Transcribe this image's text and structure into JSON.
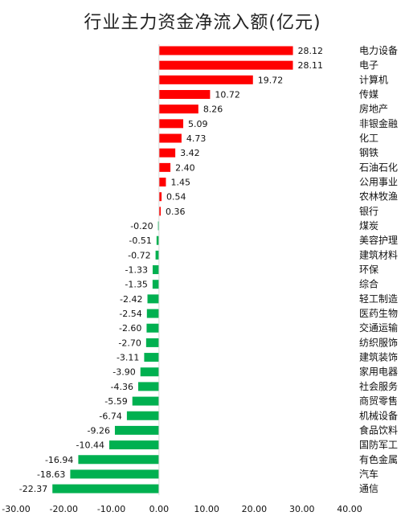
{
  "chart_data": {
    "type": "bar",
    "orientation": "horizontal",
    "title": "行业主力资金净流入额(亿元)",
    "xlim": [
      -30,
      40
    ],
    "x_ticks": [
      "-30.00",
      "-20.00",
      "-10.00",
      "0.00",
      "10.00",
      "20.00",
      "30.00",
      "40.00"
    ],
    "grid": false,
    "colors": {
      "positive": "#ff0000",
      "negative": "#00b050"
    },
    "categories": [
      "电力设备",
      "电子",
      "计算机",
      "传媒",
      "房地产",
      "非银金融",
      "化工",
      "钢铁",
      "石油石化",
      "公用事业",
      "农林牧渔",
      "银行",
      "煤炭",
      "美容护理",
      "建筑材料",
      "环保",
      "综合",
      "轻工制造",
      "医药生物",
      "交通运输",
      "纺织服饰",
      "建筑装饰",
      "家用电器",
      "社会服务",
      "商贸零售",
      "机械设备",
      "食品饮料",
      "国防军工",
      "有色金属",
      "汽车",
      "通信"
    ],
    "values": [
      28.12,
      28.11,
      19.72,
      10.72,
      8.26,
      5.09,
      4.73,
      3.42,
      2.4,
      1.45,
      0.54,
      0.36,
      -0.2,
      -0.51,
      -0.72,
      -1.33,
      -1.35,
      -2.42,
      -2.54,
      -2.6,
      -2.7,
      -3.11,
      -3.9,
      -4.36,
      -5.59,
      -6.74,
      -9.26,
      -10.44,
      -16.94,
      -18.63,
      -22.37
    ],
    "value_labels": [
      "28.12",
      "28.11",
      "19.72",
      "10.72",
      "8.26",
      "5.09",
      "4.73",
      "3.42",
      "2.40",
      "1.45",
      "0.54",
      "0.36",
      "-0.20",
      "-0.51",
      "-0.72",
      "-1.33",
      "-1.35",
      "-2.42",
      "-2.54",
      "-2.60",
      "-2.70",
      "-3.11",
      "-3.90",
      "-4.36",
      "-5.59",
      "-6.74",
      "-9.26",
      "-10.44",
      "-16.94",
      "-18.63",
      "-22.37"
    ]
  }
}
